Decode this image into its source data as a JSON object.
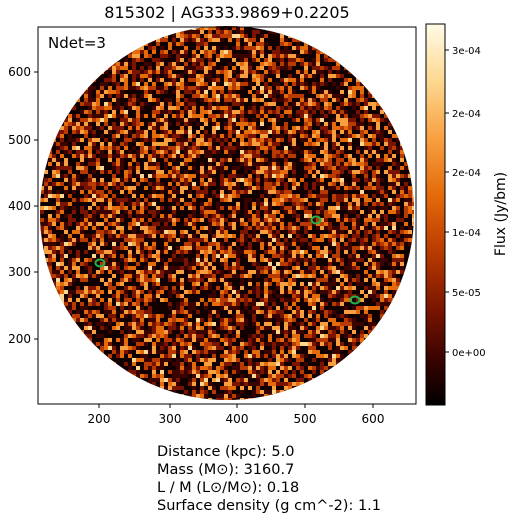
{
  "title": "815302 | AG333.9869+0.2205",
  "ndet_label": "Ndet=3",
  "x_ticks": [
    "200",
    "300",
    "400",
    "500",
    "600"
  ],
  "y_ticks": [
    "600",
    "500",
    "400",
    "300",
    "200"
  ],
  "colorbar": {
    "label": "Flux (Jy/bm)",
    "ticks": [
      "3e-04",
      "2e-04",
      "2e-04",
      "1e-04",
      "5e-05",
      "0e+00"
    ],
    "colors": [
      "#000000",
      "#3a0300",
      "#7a1400",
      "#b83a00",
      "#e46a0a",
      "#f8a040",
      "#fdd890",
      "#fffbe6"
    ]
  },
  "detections": {
    "count": 3,
    "contour_color": "#22b14c"
  },
  "info": {
    "distance": "Distance (kpc): 5.0",
    "mass": "Mass (M⊙): 3160.7",
    "lm": "L / M (L⊙/M⊙): 0.18",
    "surface_density": "Surface density (g cm^-2): 1.1"
  }
}
